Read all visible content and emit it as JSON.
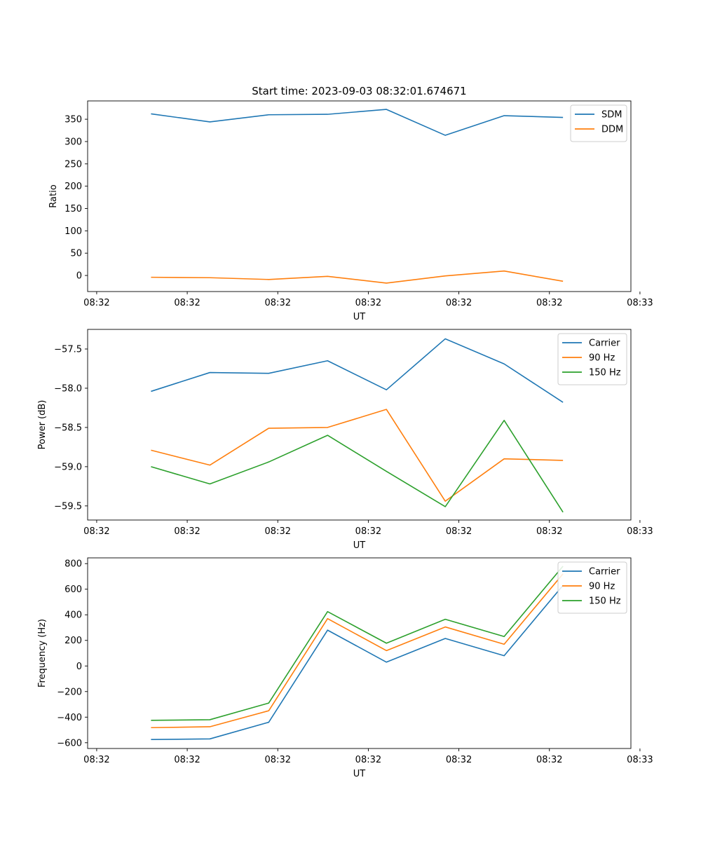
{
  "chart_data": [
    {
      "type": "line",
      "title": "Start time: 2023-09-03 08:32:01.674671",
      "xlabel": "UT",
      "ylabel": "Ratio",
      "x": [
        0.7,
        1.35,
        2.0,
        2.65,
        3.3,
        3.95,
        4.6,
        5.25
      ],
      "xlim": [
        0.0,
        6.0
      ],
      "xticks": [
        0.1,
        1.1,
        2.1,
        3.1,
        4.1,
        5.1,
        6.1
      ],
      "xtick_labels": [
        "08:32",
        "08:32",
        "08:32",
        "08:32",
        "08:32",
        "08:32",
        "08:33"
      ],
      "ylim": [
        -36,
        391
      ],
      "yticks": [
        0,
        50,
        100,
        150,
        200,
        250,
        300,
        350
      ],
      "ytick_labels": [
        "0",
        "50",
        "100",
        "150",
        "200",
        "250",
        "300",
        "350"
      ],
      "legend": "top-right",
      "series": [
        {
          "name": "SDM",
          "color": "#1f77b4",
          "values": [
            362,
            344,
            360,
            361,
            372,
            314,
            358,
            354
          ]
        },
        {
          "name": "DDM",
          "color": "#ff7f0e",
          "values": [
            -4,
            -5,
            -9,
            -2,
            -17,
            -1,
            10,
            -13
          ]
        }
      ]
    },
    {
      "type": "line",
      "title": "",
      "xlabel": "UT",
      "ylabel": "Power (dB)",
      "x": [
        0.7,
        1.35,
        2.0,
        2.65,
        3.3,
        3.95,
        4.6,
        5.25
      ],
      "xlim": [
        0.0,
        6.0
      ],
      "xticks": [
        0.1,
        1.1,
        2.1,
        3.1,
        4.1,
        5.1,
        6.1
      ],
      "xtick_labels": [
        "08:32",
        "08:32",
        "08:32",
        "08:32",
        "08:32",
        "08:32",
        "08:33"
      ],
      "ylim": [
        -59.68,
        -57.25
      ],
      "yticks": [
        -59.5,
        -59.0,
        -58.5,
        -58.0,
        -57.5
      ],
      "ytick_labels": [
        "−59.5",
        "−59.0",
        "−58.5",
        "−58.0",
        "−57.5"
      ],
      "legend": "top-right",
      "series": [
        {
          "name": "Carrier",
          "color": "#1f77b4",
          "values": [
            -58.04,
            -57.8,
            -57.81,
            -57.65,
            -58.02,
            -57.37,
            -57.69,
            -58.18
          ]
        },
        {
          "name": "90 Hz",
          "color": "#ff7f0e",
          "values": [
            -58.79,
            -58.98,
            -58.51,
            -58.5,
            -58.27,
            -59.44,
            -58.9,
            -58.92
          ]
        },
        {
          "name": "150 Hz",
          "color": "#2ca02c",
          "values": [
            -59.0,
            -59.22,
            -58.94,
            -58.6,
            -59.06,
            -59.51,
            -58.41,
            -59.58
          ]
        }
      ]
    },
    {
      "type": "line",
      "title": "",
      "xlabel": "UT",
      "ylabel": "Frequency (Hz)",
      "x": [
        0.7,
        1.35,
        2.0,
        2.65,
        3.3,
        3.95,
        4.6,
        5.25
      ],
      "xlim": [
        0.0,
        6.0
      ],
      "xticks": [
        0.1,
        1.1,
        2.1,
        3.1,
        4.1,
        5.1,
        6.1
      ],
      "xtick_labels": [
        "08:32",
        "08:32",
        "08:32",
        "08:32",
        "08:32",
        "08:32",
        "08:33"
      ],
      "ylim": [
        -645,
        845
      ],
      "yticks": [
        -600,
        -400,
        -200,
        0,
        200,
        400,
        600,
        800
      ],
      "ytick_labels": [
        "−600",
        "−400",
        "−200",
        "0",
        "200",
        "400",
        "600",
        "800"
      ],
      "legend": "top-right",
      "series": [
        {
          "name": "Carrier",
          "color": "#1f77b4",
          "values": [
            -575,
            -570,
            -440,
            280,
            30,
            215,
            80,
            630
          ]
        },
        {
          "name": "90 Hz",
          "color": "#ff7f0e",
          "values": [
            -482,
            -475,
            -350,
            370,
            120,
            305,
            170,
            720
          ]
        },
        {
          "name": "150 Hz",
          "color": "#2ca02c",
          "values": [
            -425,
            -420,
            -290,
            425,
            178,
            365,
            230,
            780
          ]
        }
      ]
    }
  ]
}
